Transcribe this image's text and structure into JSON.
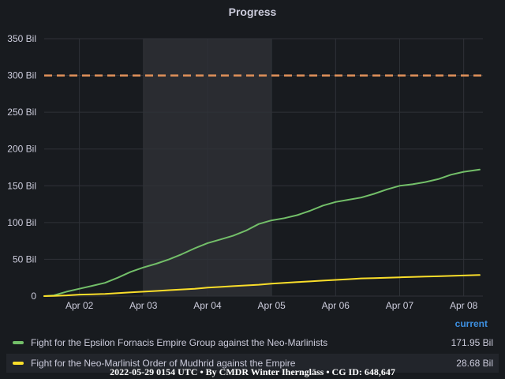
{
  "panel": {
    "title": "Progress",
    "footer": "2022-05-29 0154 UTC • By CMDR Winter Iherngläss • CG ID: 648,647"
  },
  "legend": {
    "header": "current",
    "items": [
      {
        "label": "Fight for the Epsilon Fornacis Empire Group against the Neo-Marlinists",
        "value": "171.95 Bil",
        "color": "#73bf69"
      },
      {
        "label": "Fight for the Neo-Marlinist Order of Mudhrid against the Empire",
        "value": "28.68 Bil",
        "color": "#fade2a"
      }
    ]
  },
  "chart_data": {
    "type": "line",
    "title": "Progress",
    "y_unit": "Bil",
    "ylim": [
      0,
      350
    ],
    "yticks": [
      0,
      50,
      100,
      150,
      200,
      250,
      300,
      350
    ],
    "ytick_labels": [
      "0",
      "50 Bil",
      "100 Bil",
      "150 Bil",
      "200 Bil",
      "250 Bil",
      "300 Bil",
      "350 Bil"
    ],
    "xlim": [
      0.45,
      7.3
    ],
    "xticks": [
      1,
      2,
      3,
      4,
      5,
      6,
      7
    ],
    "xtick_labels": [
      "Apr 02",
      "Apr 03",
      "Apr 04",
      "Apr 05",
      "Apr 06",
      "Apr 07",
      "Apr 08"
    ],
    "x_axis_note": "x values are days, where 1 = Apr 02 00:00 and 7 = Apr 08 00:00",
    "grid": true,
    "threshold": {
      "value": 300,
      "color": "#e0915a",
      "style": "dashed"
    },
    "shaded_region": {
      "x_from": 2,
      "x_to": 4,
      "color": "#3a3b40"
    },
    "series": [
      {
        "name": "Fight for the Epsilon Fornacis Empire Group against the Neo-Marlinists",
        "color": "#73bf69",
        "x": [
          0.45,
          0.6,
          0.8,
          1.0,
          1.2,
          1.4,
          1.6,
          1.8,
          2.0,
          2.2,
          2.4,
          2.6,
          2.8,
          3.0,
          3.2,
          3.4,
          3.6,
          3.8,
          4.0,
          4.2,
          4.4,
          4.6,
          4.8,
          5.0,
          5.2,
          5.4,
          5.6,
          5.8,
          6.0,
          6.2,
          6.4,
          6.6,
          6.8,
          7.0,
          7.25
        ],
        "y": [
          0,
          1,
          6,
          10,
          14,
          18,
          25,
          33,
          39,
          44,
          50,
          57,
          65,
          72,
          77,
          82,
          89,
          98,
          103,
          106,
          110,
          116,
          123,
          128,
          131,
          134,
          139,
          145,
          150,
          152,
          155,
          159,
          165,
          169,
          172
        ]
      },
      {
        "name": "Fight for the Neo-Marlinist Order of Mudhrid against the Empire",
        "color": "#fade2a",
        "x": [
          0.45,
          0.6,
          0.8,
          1.0,
          1.2,
          1.4,
          1.6,
          1.8,
          2.0,
          2.2,
          2.4,
          2.6,
          2.8,
          3.0,
          3.2,
          3.4,
          3.6,
          3.8,
          4.0,
          4.2,
          4.4,
          4.6,
          4.8,
          5.0,
          5.2,
          5.4,
          5.6,
          5.8,
          6.0,
          6.2,
          6.4,
          6.6,
          6.8,
          7.0,
          7.25
        ],
        "y": [
          0,
          0.3,
          1,
          2,
          2.5,
          3,
          4,
          5,
          6,
          7,
          8,
          9,
          10,
          11.5,
          12.5,
          13.5,
          14.5,
          15.5,
          17,
          18,
          19,
          20,
          21,
          22,
          23,
          24,
          24.5,
          25,
          25.5,
          26,
          26.5,
          27,
          27.5,
          28,
          28.68
        ]
      }
    ]
  }
}
